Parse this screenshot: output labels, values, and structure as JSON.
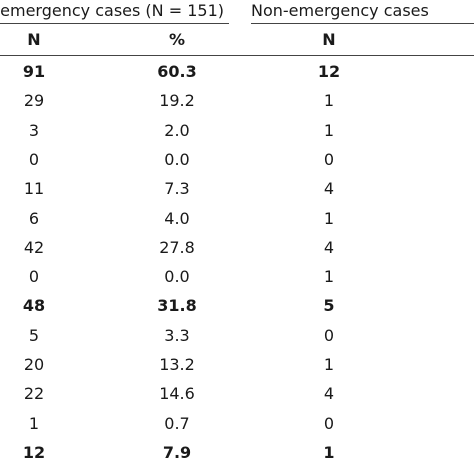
{
  "table": {
    "group_headers": {
      "emergency": "emergency cases (N = 151)",
      "non_emergency": "Non-emergency cases"
    },
    "column_headers": [
      "N",
      "%",
      "N"
    ],
    "rows": [
      {
        "emergency_n": "91",
        "emergency_pct": "60.3",
        "non_emergency_n": "12",
        "bold": true
      },
      {
        "emergency_n": "29",
        "emergency_pct": "19.2",
        "non_emergency_n": "1",
        "bold": false
      },
      {
        "emergency_n": "3",
        "emergency_pct": "2.0",
        "non_emergency_n": "1",
        "bold": false
      },
      {
        "emergency_n": "0",
        "emergency_pct": "0.0",
        "non_emergency_n": "0",
        "bold": false
      },
      {
        "emergency_n": "11",
        "emergency_pct": "7.3",
        "non_emergency_n": "4",
        "bold": false
      },
      {
        "emergency_n": "6",
        "emergency_pct": "4.0",
        "non_emergency_n": "1",
        "bold": false
      },
      {
        "emergency_n": "42",
        "emergency_pct": "27.8",
        "non_emergency_n": "4",
        "bold": false
      },
      {
        "emergency_n": "0",
        "emergency_pct": "0.0",
        "non_emergency_n": "1",
        "bold": false
      },
      {
        "emergency_n": "48",
        "emergency_pct": "31.8",
        "non_emergency_n": "5",
        "bold": true
      },
      {
        "emergency_n": "5",
        "emergency_pct": "3.3",
        "non_emergency_n": "0",
        "bold": false
      },
      {
        "emergency_n": "20",
        "emergency_pct": "13.2",
        "non_emergency_n": "1",
        "bold": false
      },
      {
        "emergency_n": "22",
        "emergency_pct": "14.6",
        "non_emergency_n": "4",
        "bold": false
      },
      {
        "emergency_n": "1",
        "emergency_pct": "0.7",
        "non_emergency_n": "0",
        "bold": false
      },
      {
        "emergency_n": "12",
        "emergency_pct": "7.9",
        "non_emergency_n": "1",
        "bold": true
      }
    ]
  }
}
